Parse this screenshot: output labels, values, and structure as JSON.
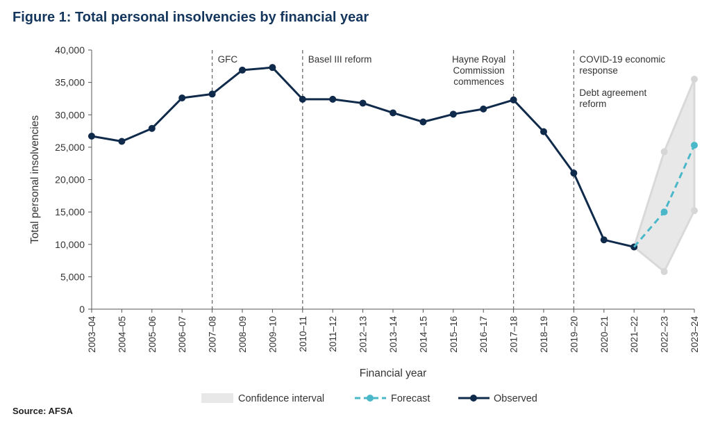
{
  "figure": {
    "title": "Figure 1: Total personal insolvencies by financial year",
    "source": "Source: AFSA"
  },
  "chart_data": {
    "type": "line",
    "xlabel": "Financial year",
    "ylabel": "Total personal insolvencies",
    "ylim": [
      0,
      40000
    ],
    "yticks": [
      0,
      5000,
      10000,
      15000,
      20000,
      25000,
      30000,
      35000,
      40000
    ],
    "ytick_labels": [
      "0",
      "5,000",
      "10,000",
      "15,000",
      "20,000",
      "25,000",
      "30,000",
      "35,000",
      "40,000"
    ],
    "categories": [
      "2003–04",
      "2004–05",
      "2005–06",
      "2006–07",
      "2007–08",
      "2008–09",
      "2009–10",
      "2010–11",
      "2011–12",
      "2012–13",
      "2013–14",
      "2014–15",
      "2015–16",
      "2016–17",
      "2017–18",
      "2018–19",
      "2019–20",
      "2020–21",
      "2021–22",
      "2022–23",
      "2023–24"
    ],
    "grid": false,
    "legend_position": "bottom",
    "series": [
      {
        "name": "Observed",
        "color": "#0f2a4a",
        "style": "solid",
        "x": [
          "2003–04",
          "2004–05",
          "2005–06",
          "2006–07",
          "2007–08",
          "2008–09",
          "2009–10",
          "2010–11",
          "2011–12",
          "2012–13",
          "2013–14",
          "2014–15",
          "2015–16",
          "2016–17",
          "2017–18",
          "2018–19",
          "2019–20",
          "2020–21",
          "2021–22"
        ],
        "values": [
          26700,
          25900,
          27900,
          32600,
          33200,
          36900,
          37300,
          32400,
          32400,
          31800,
          30300,
          28900,
          30100,
          30900,
          32300,
          27400,
          21000,
          10700,
          9600
        ]
      },
      {
        "name": "Forecast",
        "color": "#4ab8c8",
        "style": "dashed",
        "x": [
          "2021–22",
          "2022–23",
          "2023–24"
        ],
        "values": [
          9600,
          15000,
          25300
        ]
      }
    ],
    "confidence_interval": {
      "name": "Confidence interval",
      "color": "#e8e8e8",
      "x": [
        "2021–22",
        "2022–23",
        "2023–24"
      ],
      "upper": [
        9600,
        24300,
        35500
      ],
      "lower": [
        9600,
        5800,
        15200
      ]
    },
    "annotations": [
      {
        "x": "2007–08",
        "lines": [
          "GFC"
        ]
      },
      {
        "x": "2010–11",
        "lines": [
          "Basel III reform"
        ]
      },
      {
        "x": "2017–18",
        "lines": [
          "Hayne Royal",
          "Commission",
          "commences"
        ]
      },
      {
        "x": "2019–20",
        "lines": [
          "COVID-19 economic",
          "response",
          "",
          "Debt agreement",
          "reform"
        ]
      }
    ]
  }
}
